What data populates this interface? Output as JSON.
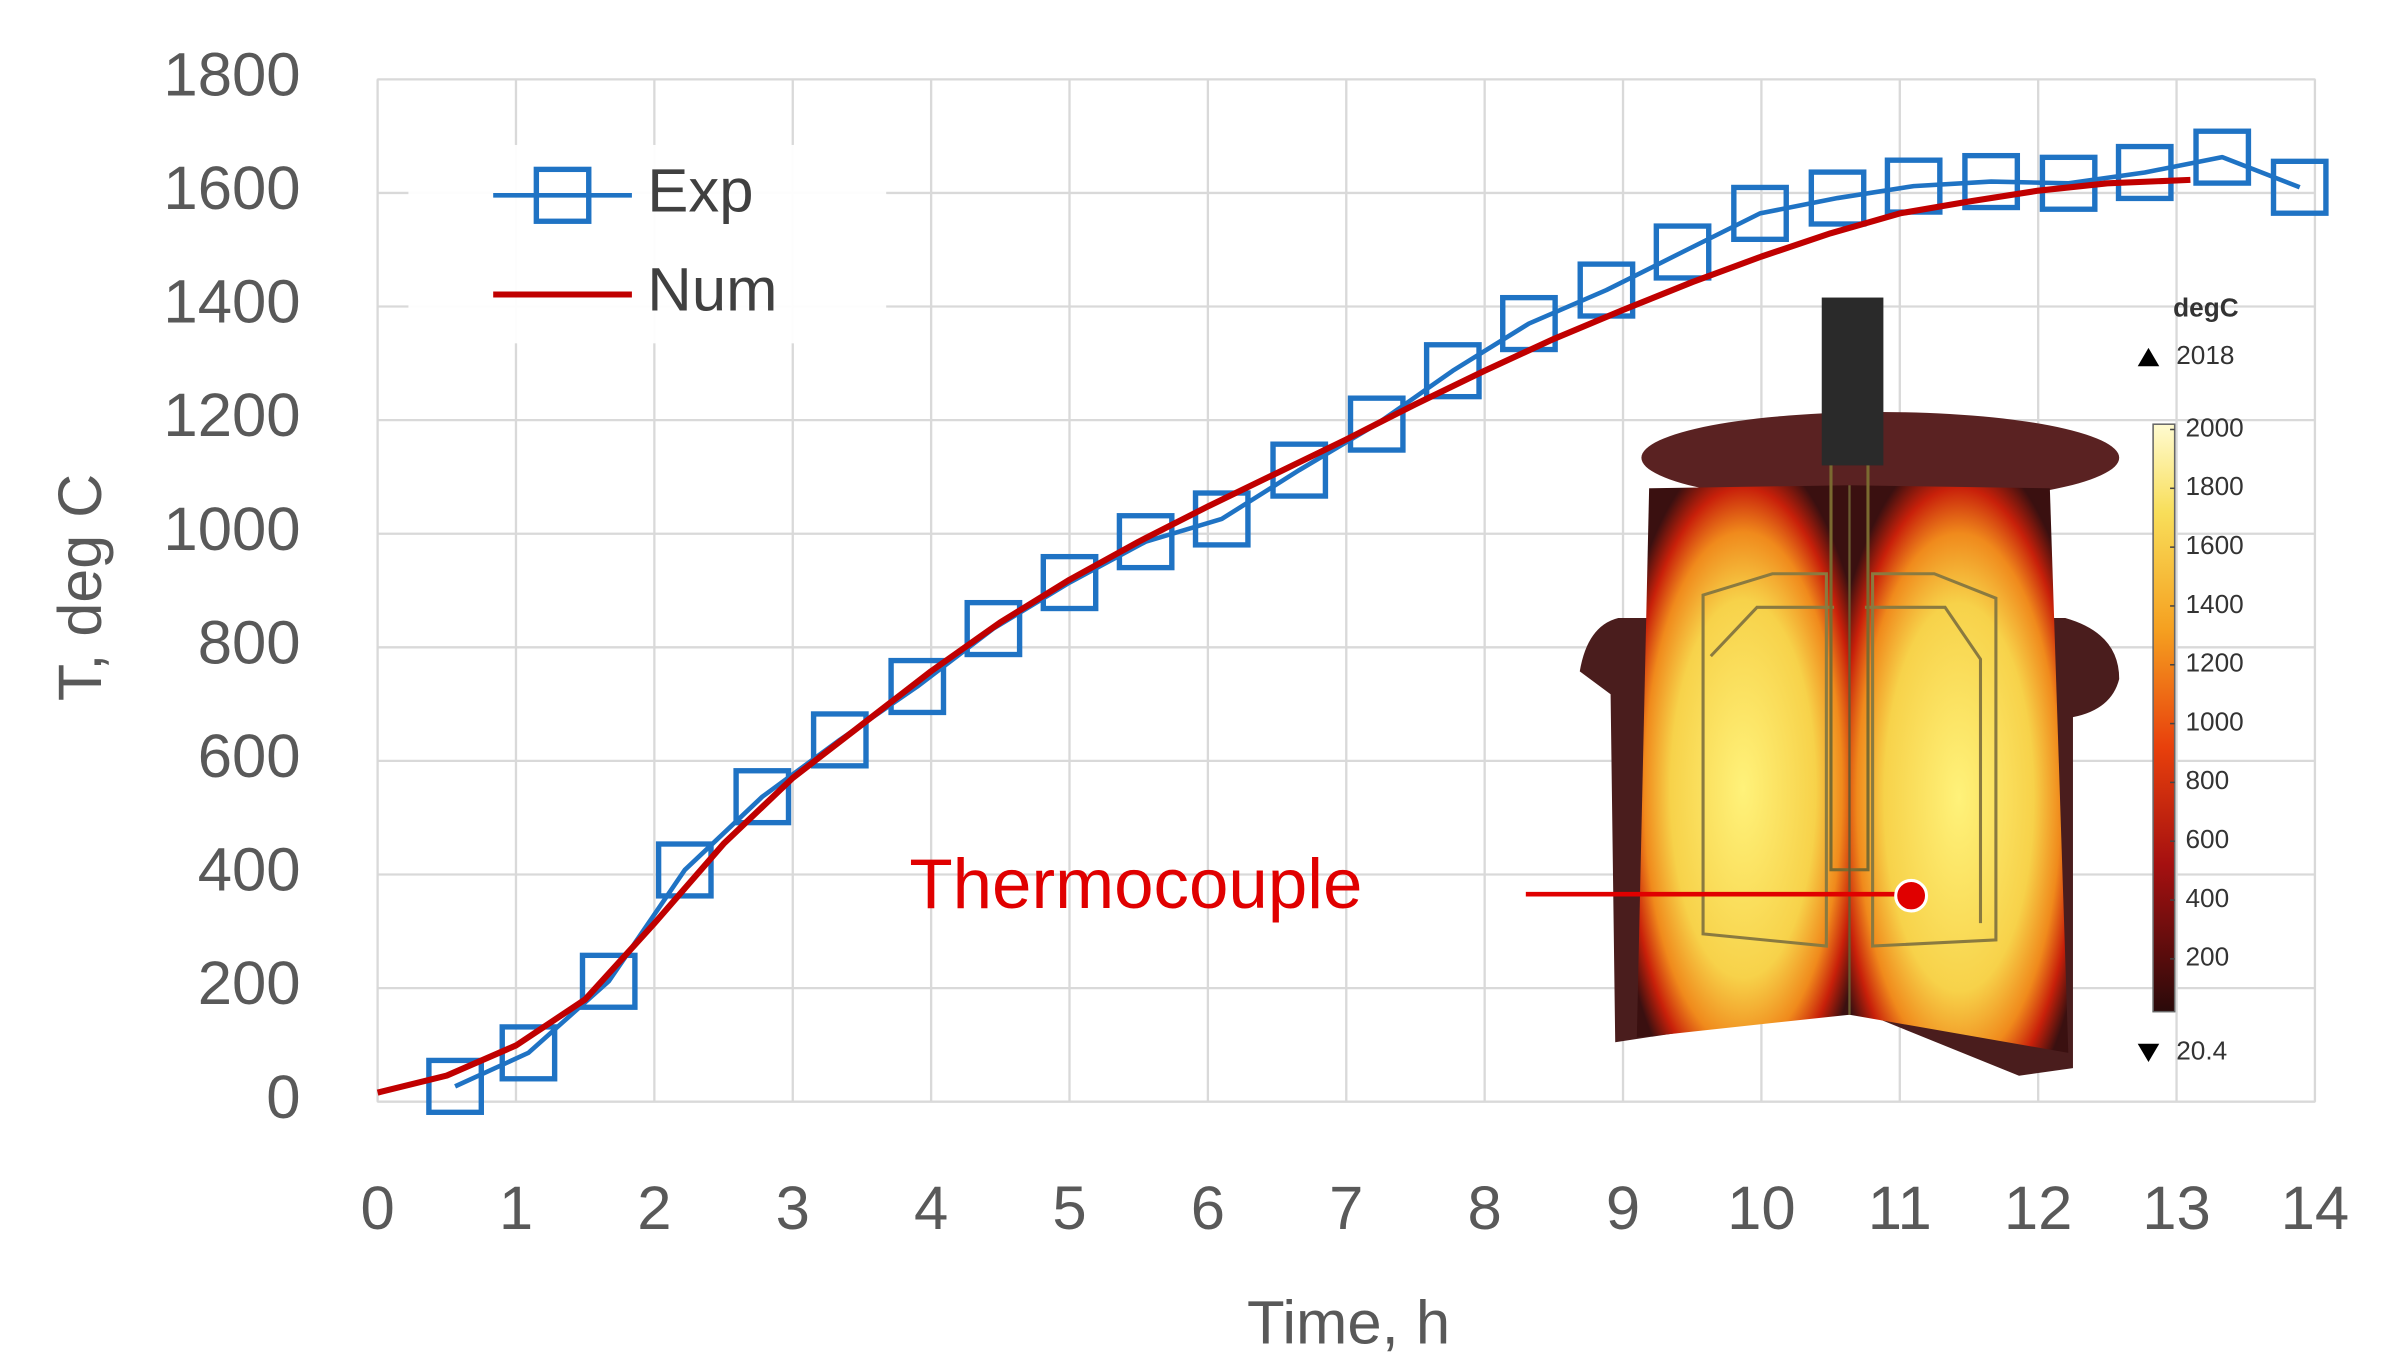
{
  "chart_data": {
    "type": "line",
    "xlabel": "Time, h",
    "ylabel": "T, deg C",
    "xlim": [
      0,
      14
    ],
    "xticks": [
      0,
      1,
      2,
      3,
      4,
      5,
      6,
      7,
      8,
      9,
      10,
      11,
      12,
      13,
      14
    ],
    "ylim": [
      0,
      1800
    ],
    "yticks": [
      0,
      200,
      400,
      600,
      800,
      1000,
      1200,
      1400,
      1600,
      1800
    ],
    "grid": true,
    "legend": "upper left",
    "series": [
      {
        "name": "Exp",
        "color": "#1f73c4",
        "marker": "square",
        "x": [
          0.56,
          1.09,
          1.67,
          2.22,
          2.78,
          3.34,
          3.9,
          4.45,
          5.0,
          5.55,
          6.1,
          6.66,
          7.22,
          7.77,
          8.32,
          8.88,
          9.43,
          9.99,
          10.55,
          11.1,
          11.66,
          12.22,
          12.77,
          13.33,
          13.89
        ],
        "values": [
          27,
          86,
          212,
          408,
          537,
          637,
          731,
          833,
          914,
          986,
          1026,
          1112,
          1193,
          1287,
          1370,
          1429,
          1496,
          1564,
          1591,
          1612,
          1620,
          1617,
          1636,
          1663,
          1610
        ]
      },
      {
        "name": "Num",
        "color": "#c00000",
        "marker": "none",
        "x": [
          0,
          0.5,
          1,
          1.5,
          2,
          2.5,
          3,
          3.5,
          4,
          4.5,
          5,
          5.5,
          6,
          6.5,
          7,
          7.5,
          8,
          8.5,
          9,
          9.5,
          10,
          10.5,
          11,
          11.5,
          12,
          12.5,
          13.1
        ],
        "values": [
          16,
          46,
          99,
          180,
          314,
          454,
          570,
          664,
          758,
          844,
          919,
          986,
          1048,
          1107,
          1166,
          1228,
          1287,
          1343,
          1394,
          1443,
          1488,
          1529,
          1564,
          1585,
          1604,
          1617,
          1623
        ]
      }
    ],
    "annotation": "Thermocouple",
    "colorbar": {
      "title": "degC",
      "lim": [
        20.4,
        2018
      ],
      "ticks": [
        200,
        400,
        600,
        800,
        1000,
        1200,
        1400,
        1600,
        1800,
        2000
      ]
    }
  }
}
